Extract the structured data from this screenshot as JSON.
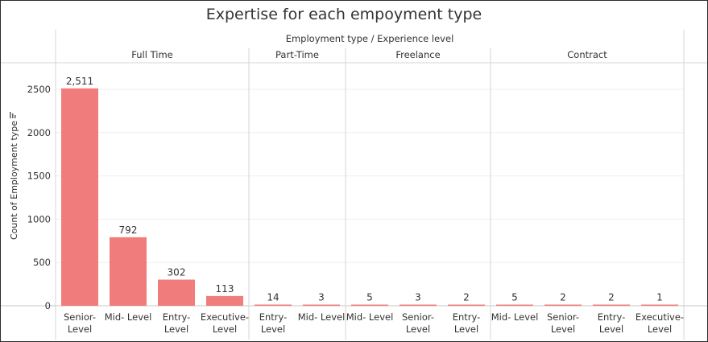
{
  "chart_data": {
    "type": "bar",
    "title": "Expertise for each empoyment type",
    "header": "Employment type / Experience level",
    "ylabel": "Count of Employment type",
    "ylim": [
      0,
      2650
    ],
    "yticks": [
      "0",
      "500",
      "1000",
      "1500",
      "2000",
      "2500"
    ],
    "yticks_values": [
      0,
      500,
      1000,
      1500,
      2000,
      2500
    ],
    "bar_color": "#F07C7C",
    "groups": [
      {
        "name": "Full Time",
        "categories": [
          "Senior-\nLevel",
          "Mid- Level",
          "Entry-\nLevel",
          "Executive-\nLevel"
        ],
        "values": [
          2511,
          792,
          302,
          113
        ],
        "labels": [
          "2,511",
          "792",
          "302",
          "113"
        ]
      },
      {
        "name": "Part-Time",
        "categories": [
          "Entry-\nLevel",
          "Mid- Level"
        ],
        "values": [
          14,
          3
        ],
        "labels": [
          "14",
          "3"
        ]
      },
      {
        "name": "Freelance",
        "categories": [
          "Mid- Level",
          "Senior-\nLevel",
          "Entry-\nLevel"
        ],
        "values": [
          5,
          3,
          2
        ],
        "labels": [
          "5",
          "3",
          "2"
        ]
      },
      {
        "name": "Contract",
        "categories": [
          "Mid- Level",
          "Senior-\nLevel",
          "Entry-\nLevel",
          "Executive-\nLevel"
        ],
        "values": [
          5,
          2,
          2,
          1
        ],
        "labels": [
          "5",
          "2",
          "2",
          "1"
        ]
      }
    ]
  }
}
